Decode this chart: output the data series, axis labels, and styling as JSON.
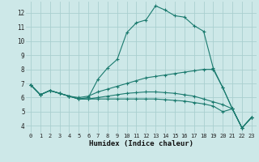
{
  "xlabel": "Humidex (Indice chaleur)",
  "xlim": [
    -0.5,
    23.5
  ],
  "ylim": [
    3.5,
    12.8
  ],
  "yticks": [
    4,
    5,
    6,
    7,
    8,
    9,
    10,
    11,
    12
  ],
  "xticks": [
    0,
    1,
    2,
    3,
    4,
    5,
    6,
    7,
    8,
    9,
    10,
    11,
    12,
    13,
    14,
    15,
    16,
    17,
    18,
    19,
    20,
    21,
    22,
    23
  ],
  "bg_color": "#cde8e8",
  "grid_color": "#aacfcf",
  "line_color": "#1a7a6e",
  "lines": [
    {
      "x": [
        0,
        1,
        2,
        3,
        4,
        5,
        6,
        7,
        8,
        9,
        10,
        11,
        12,
        13,
        14,
        15,
        16,
        17,
        18,
        19,
        20,
        21,
        22,
        23
      ],
      "y": [
        6.9,
        6.2,
        6.5,
        6.3,
        6.1,
        5.9,
        6.0,
        7.3,
        8.1,
        8.7,
        10.6,
        11.3,
        11.5,
        12.5,
        12.2,
        11.8,
        11.7,
        11.1,
        10.7,
        8.1,
        6.7,
        5.2,
        3.85,
        4.6
      ]
    },
    {
      "x": [
        0,
        1,
        2,
        3,
        4,
        5,
        6,
        7,
        8,
        9,
        10,
        11,
        12,
        13,
        14,
        15,
        16,
        17,
        18,
        19,
        20,
        21,
        22,
        23
      ],
      "y": [
        6.9,
        6.2,
        6.5,
        6.3,
        6.1,
        6.0,
        6.1,
        6.4,
        6.6,
        6.8,
        7.0,
        7.2,
        7.4,
        7.5,
        7.6,
        7.7,
        7.8,
        7.9,
        8.0,
        8.0,
        6.7,
        5.2,
        3.85,
        4.6
      ]
    },
    {
      "x": [
        0,
        1,
        2,
        3,
        4,
        5,
        6,
        7,
        8,
        9,
        10,
        11,
        12,
        13,
        14,
        15,
        16,
        17,
        18,
        19,
        20,
        21,
        22,
        23
      ],
      "y": [
        6.9,
        6.2,
        6.5,
        6.3,
        6.1,
        5.9,
        5.9,
        6.0,
        6.1,
        6.2,
        6.3,
        6.35,
        6.4,
        6.4,
        6.35,
        6.3,
        6.2,
        6.1,
        5.9,
        5.7,
        5.5,
        5.2,
        3.85,
        4.6
      ]
    },
    {
      "x": [
        0,
        1,
        2,
        3,
        4,
        5,
        6,
        7,
        8,
        9,
        10,
        11,
        12,
        13,
        14,
        15,
        16,
        17,
        18,
        19,
        20,
        21,
        22,
        23
      ],
      "y": [
        6.9,
        6.2,
        6.5,
        6.3,
        6.1,
        5.9,
        5.9,
        5.9,
        5.9,
        5.9,
        5.9,
        5.9,
        5.9,
        5.9,
        5.85,
        5.8,
        5.75,
        5.65,
        5.55,
        5.4,
        5.0,
        5.2,
        3.85,
        4.6
      ]
    }
  ],
  "tick_fontsize": 5.0,
  "xlabel_fontsize": 6.5
}
